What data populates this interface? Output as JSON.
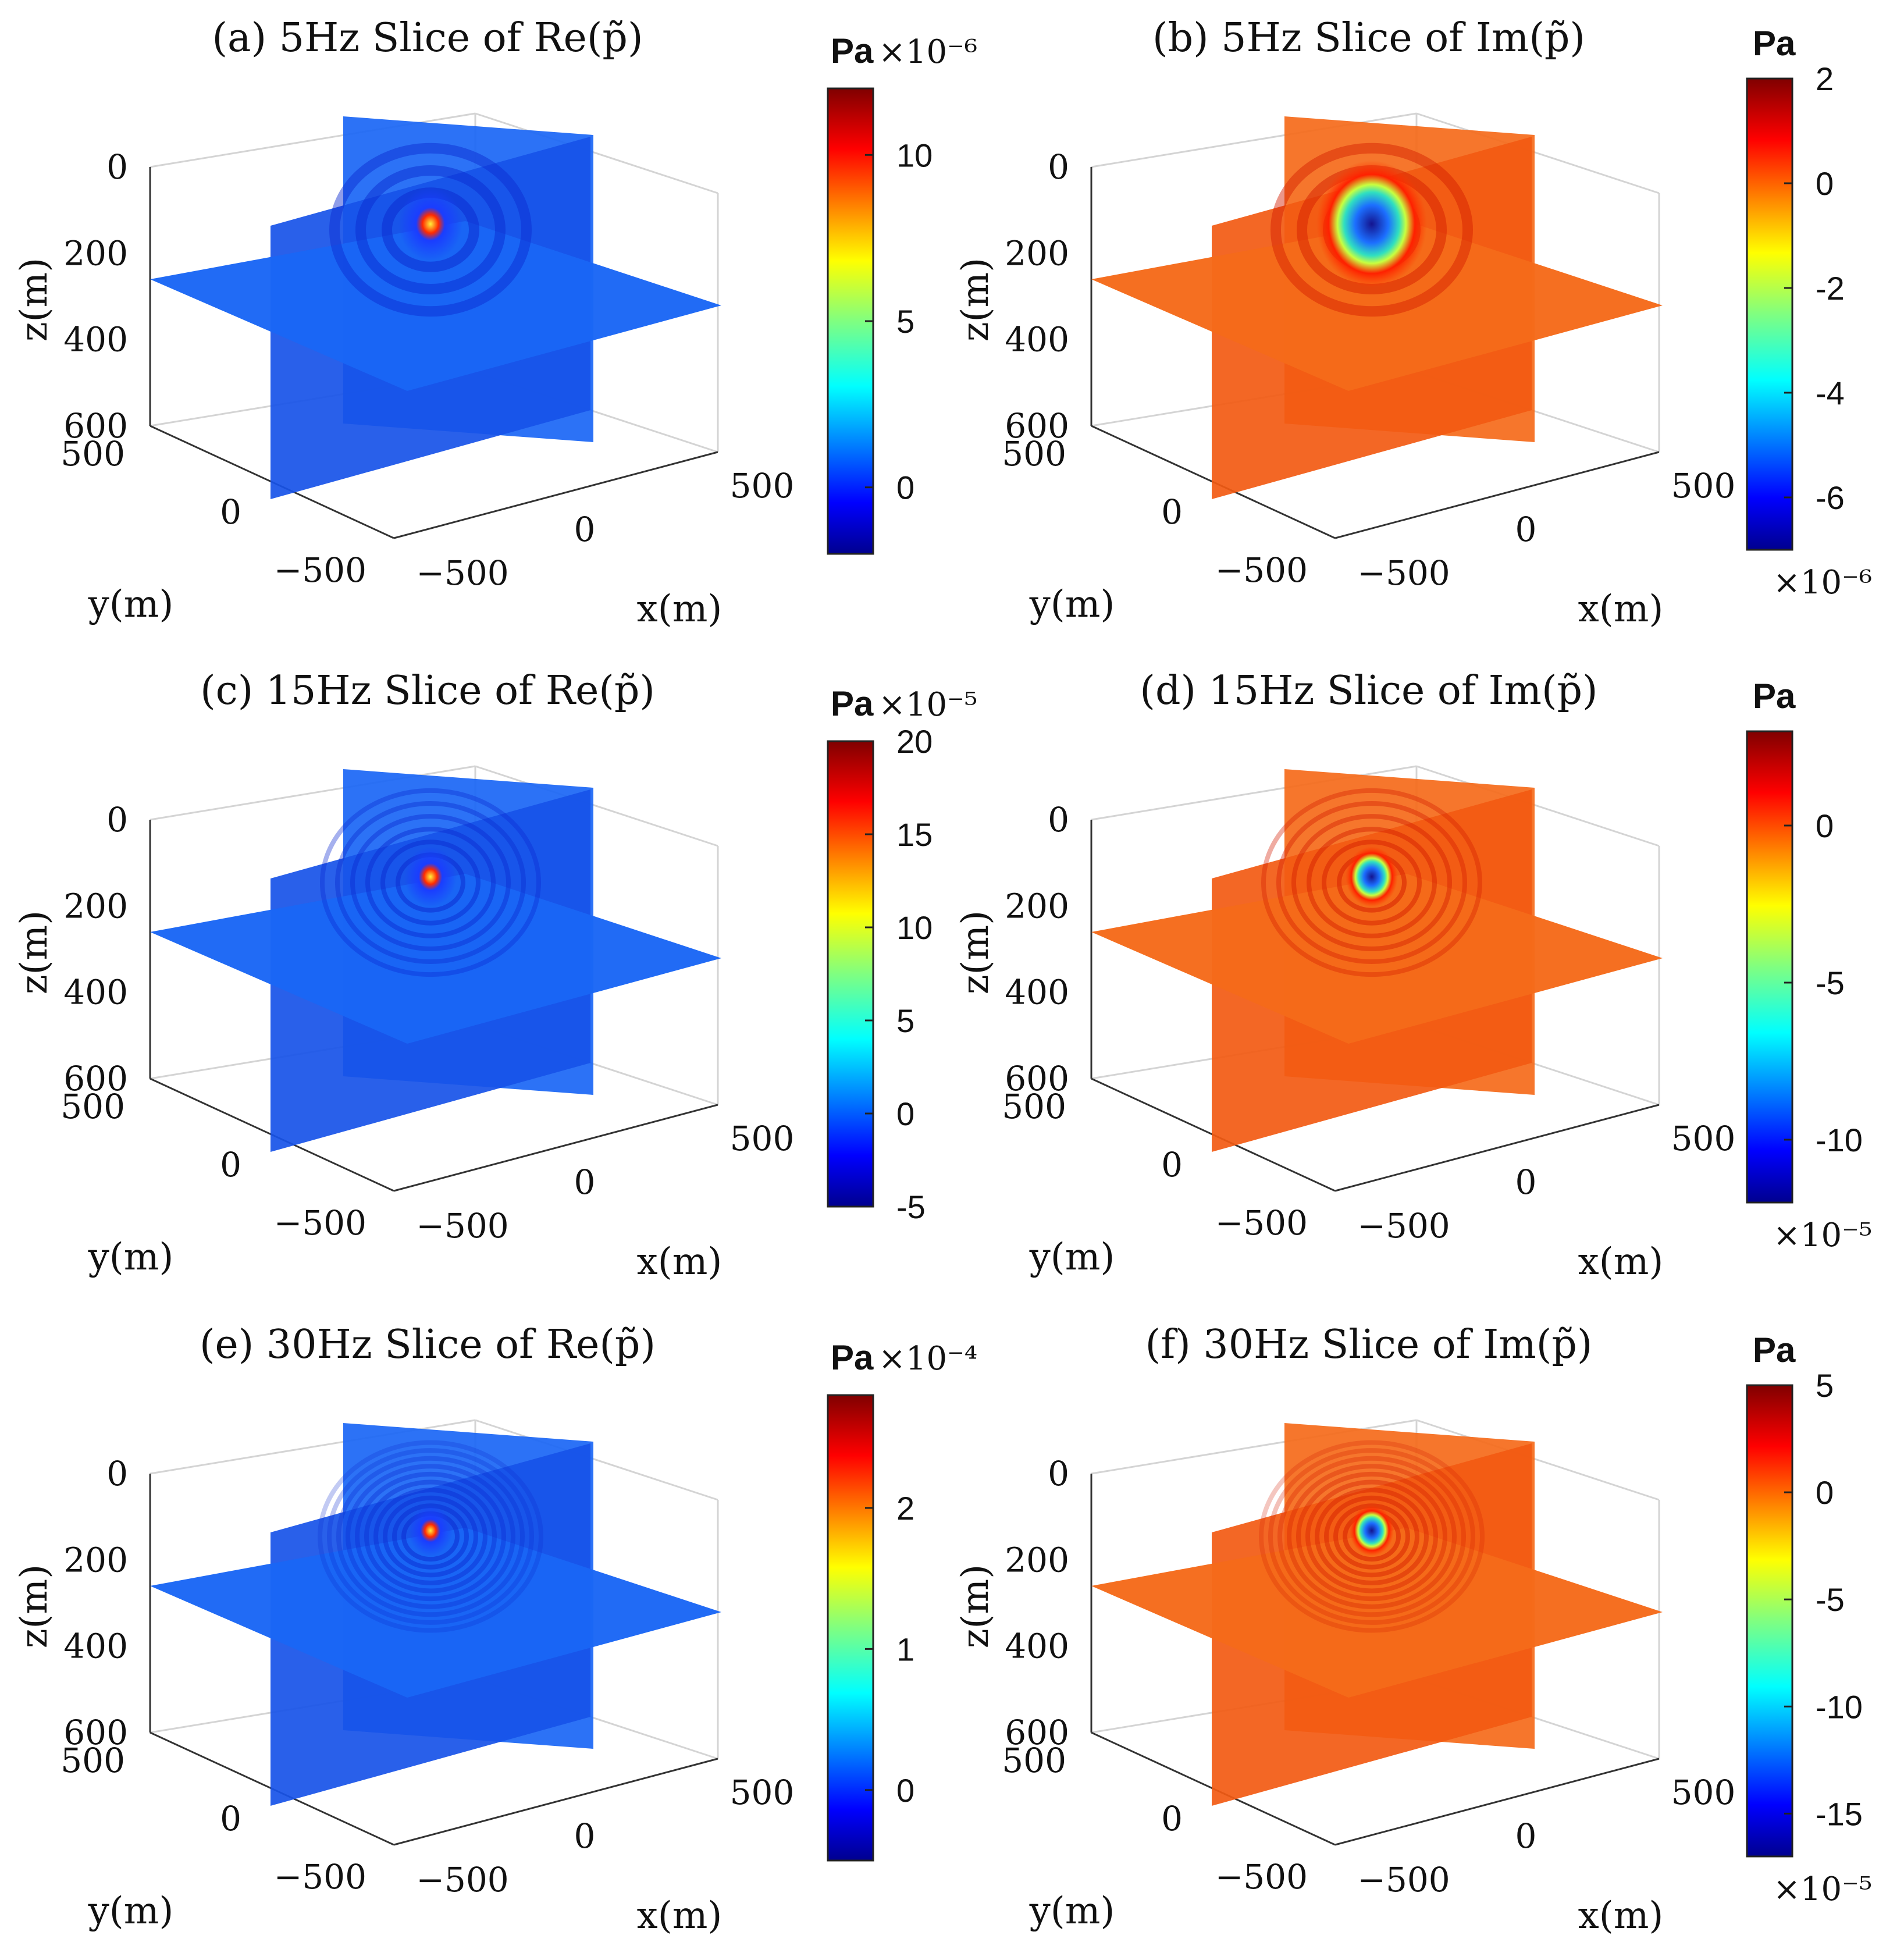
{
  "figure": {
    "panels": [
      {
        "id": "a",
        "title": "(a) 5Hz Slice of Re(p̃)",
        "kind": "re",
        "colorbar": {
          "unit": "Pa",
          "multiplier": "×10⁻⁶",
          "multiplier_pos": "top",
          "range": [
            -2,
            12
          ],
          "ticks": [
            0,
            5,
            10
          ],
          "tick_labels": [
            "0",
            "5",
            "10"
          ]
        }
      },
      {
        "id": "b",
        "title": "(b) 5Hz Slice of Im(p̃)",
        "kind": "im",
        "colorbar": {
          "unit": "Pa",
          "multiplier": "×10⁻⁶",
          "multiplier_pos": "bottom",
          "range": [
            -7,
            2
          ],
          "ticks": [
            2,
            0,
            -2,
            -4,
            -6
          ],
          "tick_labels": [
            "2",
            "0",
            "-2",
            "-4",
            "-6"
          ]
        }
      },
      {
        "id": "c",
        "title": "(c) 15Hz Slice of Re(p̃)",
        "kind": "re",
        "colorbar": {
          "unit": "Pa",
          "multiplier": "×10⁻⁵",
          "multiplier_pos": "top",
          "range": [
            -5,
            20
          ],
          "ticks": [
            20,
            15,
            10,
            5,
            0,
            -5
          ],
          "tick_labels": [
            "20",
            "15",
            "10",
            "5",
            "0",
            "-5"
          ]
        }
      },
      {
        "id": "d",
        "title": "(d) 15Hz Slice of Im(p̃)",
        "kind": "im",
        "colorbar": {
          "unit": "Pa",
          "multiplier": "×10⁻⁵",
          "multiplier_pos": "bottom",
          "range": [
            -12,
            3
          ],
          "ticks": [
            0,
            -5,
            -10
          ],
          "tick_labels": [
            "0",
            "-5",
            "-10"
          ]
        }
      },
      {
        "id": "e",
        "title": "(e) 30Hz Slice of Re(p̃)",
        "kind": "re",
        "colorbar": {
          "unit": "Pa",
          "multiplier": "×10⁻⁴",
          "multiplier_pos": "top",
          "range": [
            -0.5,
            2.8
          ],
          "ticks": [
            2,
            1,
            0
          ],
          "tick_labels": [
            "2",
            "1",
            "0"
          ]
        }
      },
      {
        "id": "f",
        "title": "(f) 30Hz Slice of Im(p̃)",
        "kind": "im",
        "colorbar": {
          "unit": "Pa",
          "multiplier": "×10⁻⁵",
          "multiplier_pos": "bottom",
          "range": [
            -17,
            5
          ],
          "ticks": [
            5,
            0,
            -5,
            -10,
            -15
          ],
          "tick_labels": [
            "5",
            "0",
            "-5",
            "-10",
            "-15"
          ]
        }
      }
    ],
    "axes": {
      "xlabel": "x(m)",
      "ylabel": "y(m)",
      "zlabel": "z(m)",
      "z_ticks": [
        "0",
        "200",
        "400",
        "600"
      ],
      "y_ticks": [
        "500",
        "0",
        "−500"
      ],
      "x_ticks": [
        "−500",
        "0",
        "500"
      ]
    }
  },
  "chart_data": [
    {
      "type": "heatmap",
      "title": "(a) 5Hz Slice of Re(p̃)",
      "xlabel": "x(m)",
      "ylabel": "y(m)",
      "zlabel": "z(m)",
      "xlim": [
        -500,
        500
      ],
      "ylim": [
        -500,
        500
      ],
      "zlim": [
        0,
        600
      ],
      "color_unit": "Pa ×10⁻⁶",
      "clim": [
        -2,
        12
      ],
      "description_values": {
        "background": 0,
        "source_peak": 12,
        "source_location_z": 150
      }
    },
    {
      "type": "heatmap",
      "title": "(b) 5Hz Slice of Im(p̃)",
      "xlabel": "x(m)",
      "ylabel": "y(m)",
      "zlabel": "z(m)",
      "xlim": [
        -500,
        500
      ],
      "ylim": [
        -500,
        500
      ],
      "zlim": [
        0,
        600
      ],
      "color_unit": "Pa ×10⁻⁶",
      "clim": [
        -7,
        2
      ],
      "description_values": {
        "background": 0,
        "source_min": -7,
        "source_location_z": 150
      }
    },
    {
      "type": "heatmap",
      "title": "(c) 15Hz Slice of Re(p̃)",
      "xlabel": "x(m)",
      "ylabel": "y(m)",
      "zlabel": "z(m)",
      "xlim": [
        -500,
        500
      ],
      "ylim": [
        -500,
        500
      ],
      "zlim": [
        0,
        600
      ],
      "color_unit": "Pa ×10⁻⁵",
      "clim": [
        -5,
        20
      ],
      "description_values": {
        "background": 0,
        "source_peak": 20,
        "source_location_z": 150
      }
    },
    {
      "type": "heatmap",
      "title": "(d) 15Hz Slice of Im(p̃)",
      "xlabel": "x(m)",
      "ylabel": "y(m)",
      "zlabel": "z(m)",
      "xlim": [
        -500,
        500
      ],
      "ylim": [
        -500,
        500
      ],
      "zlim": [
        0,
        600
      ],
      "color_unit": "Pa ×10⁻⁵",
      "clim": [
        -12,
        3
      ],
      "description_values": {
        "background": 0,
        "source_min": -12,
        "source_location_z": 150
      }
    },
    {
      "type": "heatmap",
      "title": "(e) 30Hz Slice of Re(p̃)",
      "xlabel": "x(m)",
      "ylabel": "y(m)",
      "zlabel": "z(m)",
      "xlim": [
        -500,
        500
      ],
      "ylim": [
        -500,
        500
      ],
      "zlim": [
        0,
        600
      ],
      "color_unit": "Pa ×10⁻⁴",
      "clim": [
        -0.5,
        2.8
      ],
      "description_values": {
        "background": 0,
        "source_peak": 2.8,
        "source_location_z": 150
      }
    },
    {
      "type": "heatmap",
      "title": "(f) 30Hz Slice of Im(p̃)",
      "xlabel": "x(m)",
      "ylabel": "y(m)",
      "zlabel": "z(m)",
      "xlim": [
        -500,
        500
      ],
      "ylim": [
        -500,
        500
      ],
      "zlim": [
        0,
        600
      ],
      "color_unit": "Pa ×10⁻⁵",
      "clim": [
        -17,
        5
      ],
      "description_values": {
        "background": 0,
        "source_min": -17,
        "source_location_z": 150
      }
    }
  ]
}
